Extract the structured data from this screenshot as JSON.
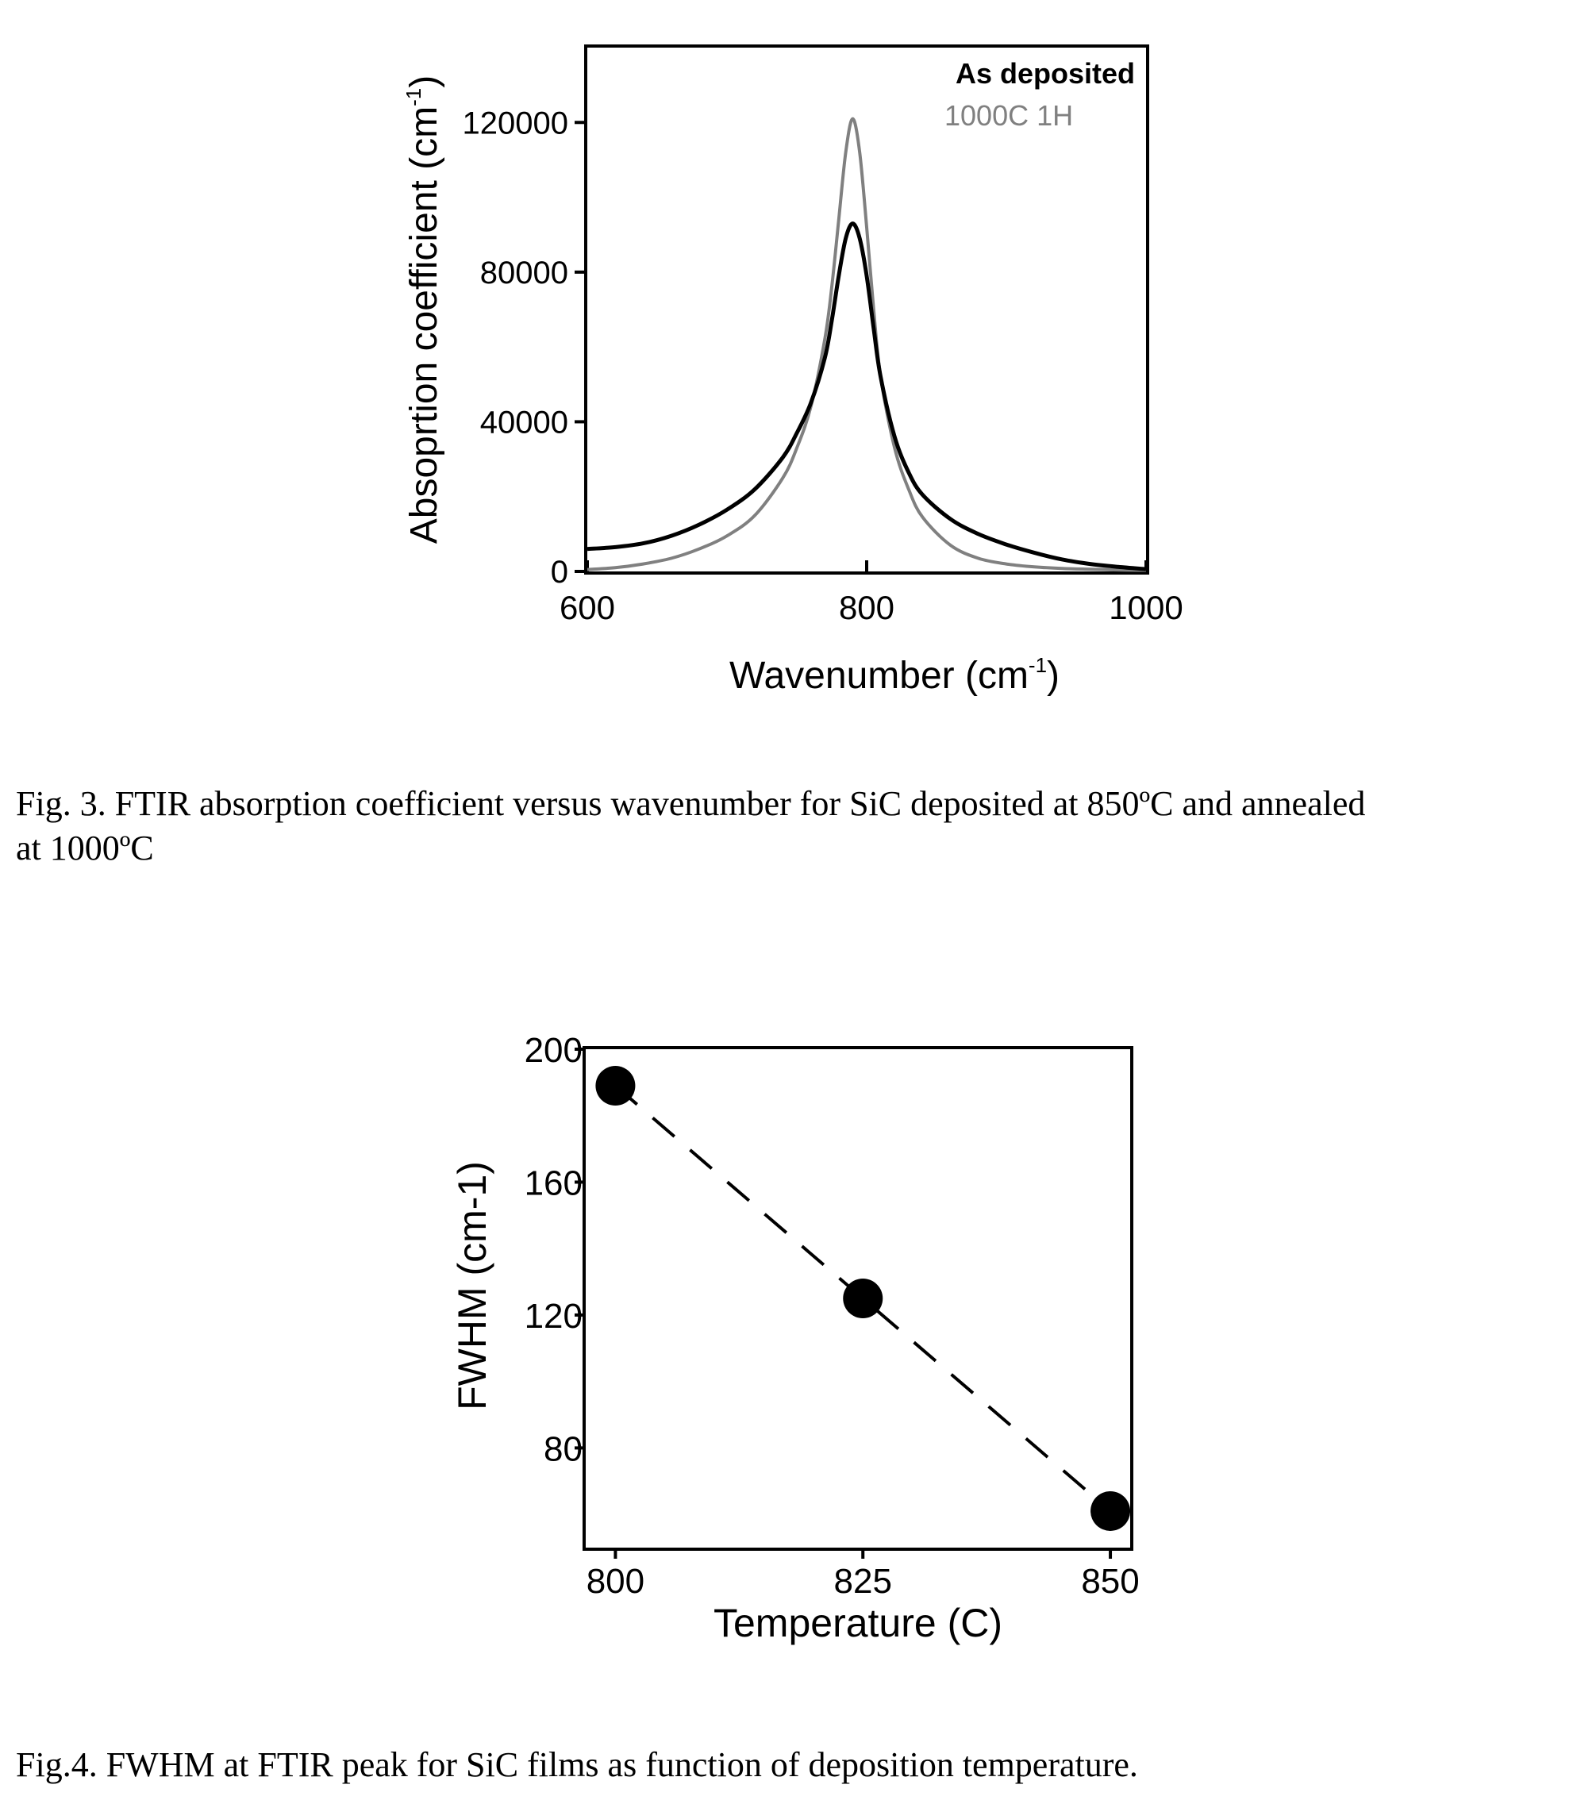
{
  "figures": [
    {
      "caption_line1": "Fig. 3.  FTIR absorption coefficient versus wavenumber for SiC deposited at 850ºC and annealed",
      "caption_line2": "at 1000ºC"
    },
    {
      "caption": "Fig.4.  FWHM at FTIR peak for SiC films as function of deposition temperature."
    }
  ],
  "chart_data": [
    {
      "type": "line",
      "xlabel": "Wavenumber (cm",
      "xlabel_sup": "-1",
      "xlabel_close": ")",
      "ylabel": "Absoprtion coefficient (cm",
      "ylabel_sup": "-1",
      "ylabel_close": ")",
      "xlim": [
        600,
        1000
      ],
      "ylim": [
        0,
        140000
      ],
      "x_ticks": [
        600,
        800,
        1000
      ],
      "y_ticks": [
        0,
        40000,
        80000,
        120000
      ],
      "y_tick_labels": [
        "0",
        "40000",
        "80000",
        "120000"
      ],
      "grid": false,
      "legend_position": "top-right",
      "series": [
        {
          "name": "As deposited",
          "color": "#000000",
          "x": [
            600,
            620,
            640,
            660,
            680,
            700,
            720,
            740,
            750,
            760,
            770,
            775,
            780,
            785,
            790,
            795,
            800,
            805,
            810,
            820,
            830,
            840,
            860,
            880,
            900,
            920,
            940,
            960,
            980,
            1000
          ],
          "y": [
            6000,
            6500,
            7500,
            9500,
            12500,
            16500,
            22000,
            30500,
            37000,
            45000,
            57000,
            67000,
            79000,
            89000,
            93000,
            89000,
            79000,
            65000,
            52000,
            36000,
            26500,
            20500,
            14000,
            10000,
            7200,
            5000,
            3200,
            2000,
            1200,
            600
          ]
        },
        {
          "name": "1000C 1H",
          "color": "#808080",
          "x": [
            600,
            620,
            640,
            660,
            680,
            700,
            720,
            740,
            750,
            760,
            770,
            775,
            780,
            785,
            790,
            795,
            800,
            805,
            810,
            820,
            830,
            840,
            860,
            880,
            900,
            920,
            940,
            960,
            980,
            1000
          ],
          "y": [
            500,
            1000,
            2000,
            3500,
            6000,
            9500,
            15000,
            25000,
            33000,
            44000,
            62000,
            76000,
            94000,
            112000,
            121000,
            112000,
            92000,
            70000,
            52000,
            33000,
            22000,
            14500,
            7000,
            3500,
            2000,
            1200,
            800,
            600,
            400,
            300
          ]
        }
      ]
    },
    {
      "type": "scatter",
      "xlabel": "Temperature (C)",
      "ylabel": "FWHM (cm-1)",
      "xlim": [
        797,
        852
      ],
      "ylim": [
        50,
        200
      ],
      "x_ticks": [
        800,
        825,
        850
      ],
      "y_ticks": [
        80,
        120,
        160,
        200
      ],
      "grid": false,
      "line_style": "dashed",
      "series": [
        {
          "x": [
            800,
            825,
            850
          ],
          "y": [
            189,
            125,
            61
          ]
        }
      ]
    }
  ]
}
